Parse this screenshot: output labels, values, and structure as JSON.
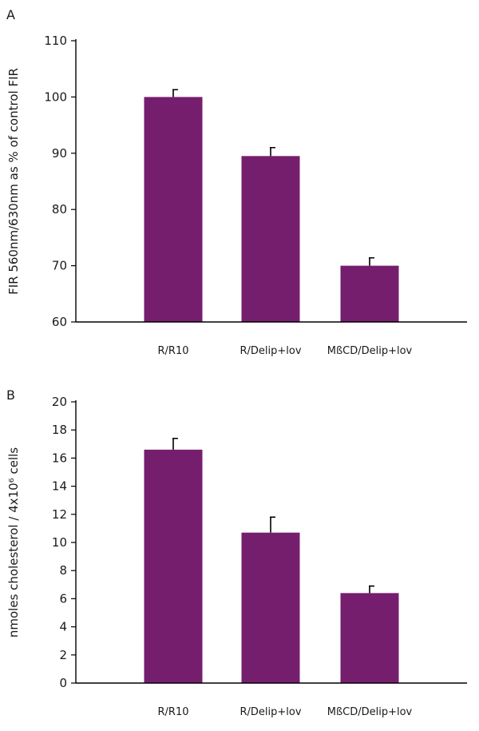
{
  "colors": {
    "bar": "#761e6e",
    "axis": "#000000",
    "text": "#1a1a1a"
  },
  "chart_data": [
    {
      "type": "bar",
      "panel_label": "A",
      "title": "",
      "xlabel": "",
      "ylabel": "FIR 560nm/630nm as % of control FIR",
      "ylim": [
        60,
        110
      ],
      "yticks": [
        60,
        70,
        80,
        90,
        100,
        110
      ],
      "grid": false,
      "categories": [
        "R/R10",
        "R/Delip+lov",
        "MßCD/Delip+lov"
      ],
      "values": [
        100,
        89.5,
        70
      ],
      "errors": [
        1.3,
        1.5,
        1.4
      ]
    },
    {
      "type": "bar",
      "panel_label": "B",
      "title": "",
      "xlabel": "",
      "ylabel": "nmoles cholesterol / 4x10⁶ cells",
      "ylim": [
        0,
        20
      ],
      "yticks": [
        0,
        2,
        4,
        6,
        8,
        10,
        12,
        14,
        16,
        18,
        20
      ],
      "grid": false,
      "categories": [
        "R/R10",
        "R/Delip+lov",
        "MßCD/Delip+lov"
      ],
      "values": [
        16.6,
        10.7,
        6.4
      ],
      "errors": [
        0.8,
        1.1,
        0.5
      ]
    }
  ]
}
